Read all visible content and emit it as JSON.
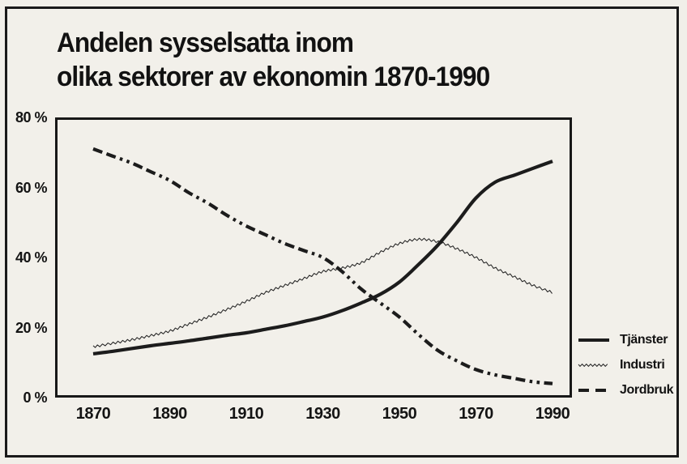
{
  "title": {
    "line1": "Andelen sysselsatta inom",
    "line2": "olika sektorer av ekonomin 1870-1990"
  },
  "colors": {
    "ink": "#161616",
    "paper": "#f1efe9",
    "line_color": "#1c1c1c"
  },
  "axes": {
    "y_ticks": [
      {
        "value": 80,
        "label": "80 %"
      },
      {
        "value": 60,
        "label": "60 %"
      },
      {
        "value": 40,
        "label": "40 %"
      },
      {
        "value": 20,
        "label": "20 %"
      },
      {
        "value": 0,
        "label": "0 %"
      }
    ],
    "x_ticks": [
      {
        "value": 1870,
        "label": "1870"
      },
      {
        "value": 1890,
        "label": "1890"
      },
      {
        "value": 1910,
        "label": "1910"
      },
      {
        "value": 1930,
        "label": "1930"
      },
      {
        "value": 1950,
        "label": "1950"
      },
      {
        "value": 1970,
        "label": "1970"
      },
      {
        "value": 1990,
        "label": "1990"
      }
    ]
  },
  "legend": {
    "items": [
      {
        "label": "Tjänster",
        "style": "solid"
      },
      {
        "label": "Industri",
        "style": "dotted"
      },
      {
        "label": "Jordbruk",
        "style": "dashed"
      }
    ]
  },
  "chart_data": {
    "type": "line",
    "title": "Andelen sysselsatta inom olika sektorer av ekonomin 1870-1990",
    "xlabel": "",
    "ylabel": "",
    "ylim": [
      0,
      80
    ],
    "xlim": [
      1870,
      1990
    ],
    "grid": false,
    "legend_position": "right-bottom",
    "y_tick_labels": [
      "0 %",
      "20 %",
      "40 %",
      "60 %",
      "80 %"
    ],
    "x": [
      1870,
      1875,
      1880,
      1885,
      1890,
      1895,
      1900,
      1905,
      1910,
      1915,
      1920,
      1925,
      1930,
      1935,
      1940,
      1945,
      1950,
      1955,
      1960,
      1965,
      1970,
      1975,
      1980,
      1985,
      1990
    ],
    "series": [
      {
        "name": "Tjänster",
        "style": "solid",
        "values": [
          12.5,
          13.2,
          14,
          14.8,
          15.5,
          16.2,
          17,
          17.8,
          18.5,
          19.5,
          20.5,
          21.7,
          23,
          24.8,
          27,
          29.5,
          33,
          38,
          43.5,
          50,
          57,
          61.5,
          63.5,
          65.5,
          67.5
        ]
      },
      {
        "name": "Industri",
        "style": "dotted",
        "values": [
          14.5,
          15.5,
          16.5,
          17.7,
          19,
          21,
          23,
          25.2,
          27.5,
          30,
          32,
          34,
          36,
          37,
          38.5,
          41.5,
          44,
          45.2,
          44.5,
          42.5,
          40,
          37,
          34.5,
          32,
          30
        ]
      },
      {
        "name": "Jordbruk",
        "style": "dashed",
        "values": [
          71,
          69,
          67,
          64.5,
          62,
          58.5,
          55.5,
          52,
          49,
          46.5,
          44,
          42,
          40,
          36,
          31,
          27,
          23,
          18,
          13.5,
          10.5,
          8,
          6.5,
          5.5,
          4.5,
          4
        ]
      }
    ]
  }
}
